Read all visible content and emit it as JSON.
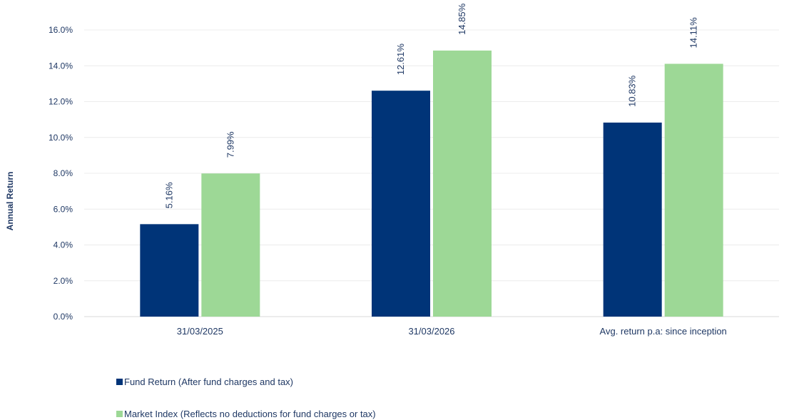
{
  "chart_data": {
    "type": "bar",
    "ylabel": "Annual Return",
    "categories": [
      "31/03/2025",
      "31/03/2026",
      "Avg. return p.a: since inception"
    ],
    "ylim": [
      0,
      16
    ],
    "yticks": [
      "0.0%",
      "2.0%",
      "4.0%",
      "6.0%",
      "8.0%",
      "10.0%",
      "12.0%",
      "14.0%",
      "16.0%"
    ],
    "grid": true,
    "legend_position": "bottom-left",
    "series": [
      {
        "name": "Fund Return (After fund charges and tax)",
        "color": "#003478",
        "values": [
          5.16,
          12.61,
          10.83
        ],
        "labels": [
          "5.16%",
          "12.61%",
          "10.83%"
        ]
      },
      {
        "name": "Market Index (Reflects no deductions for fund charges or tax)",
        "color": "#9dd896",
        "values": [
          7.99,
          14.85,
          14.11
        ],
        "labels": [
          "7.99%",
          "14.85%",
          "14.11%"
        ]
      }
    ]
  }
}
